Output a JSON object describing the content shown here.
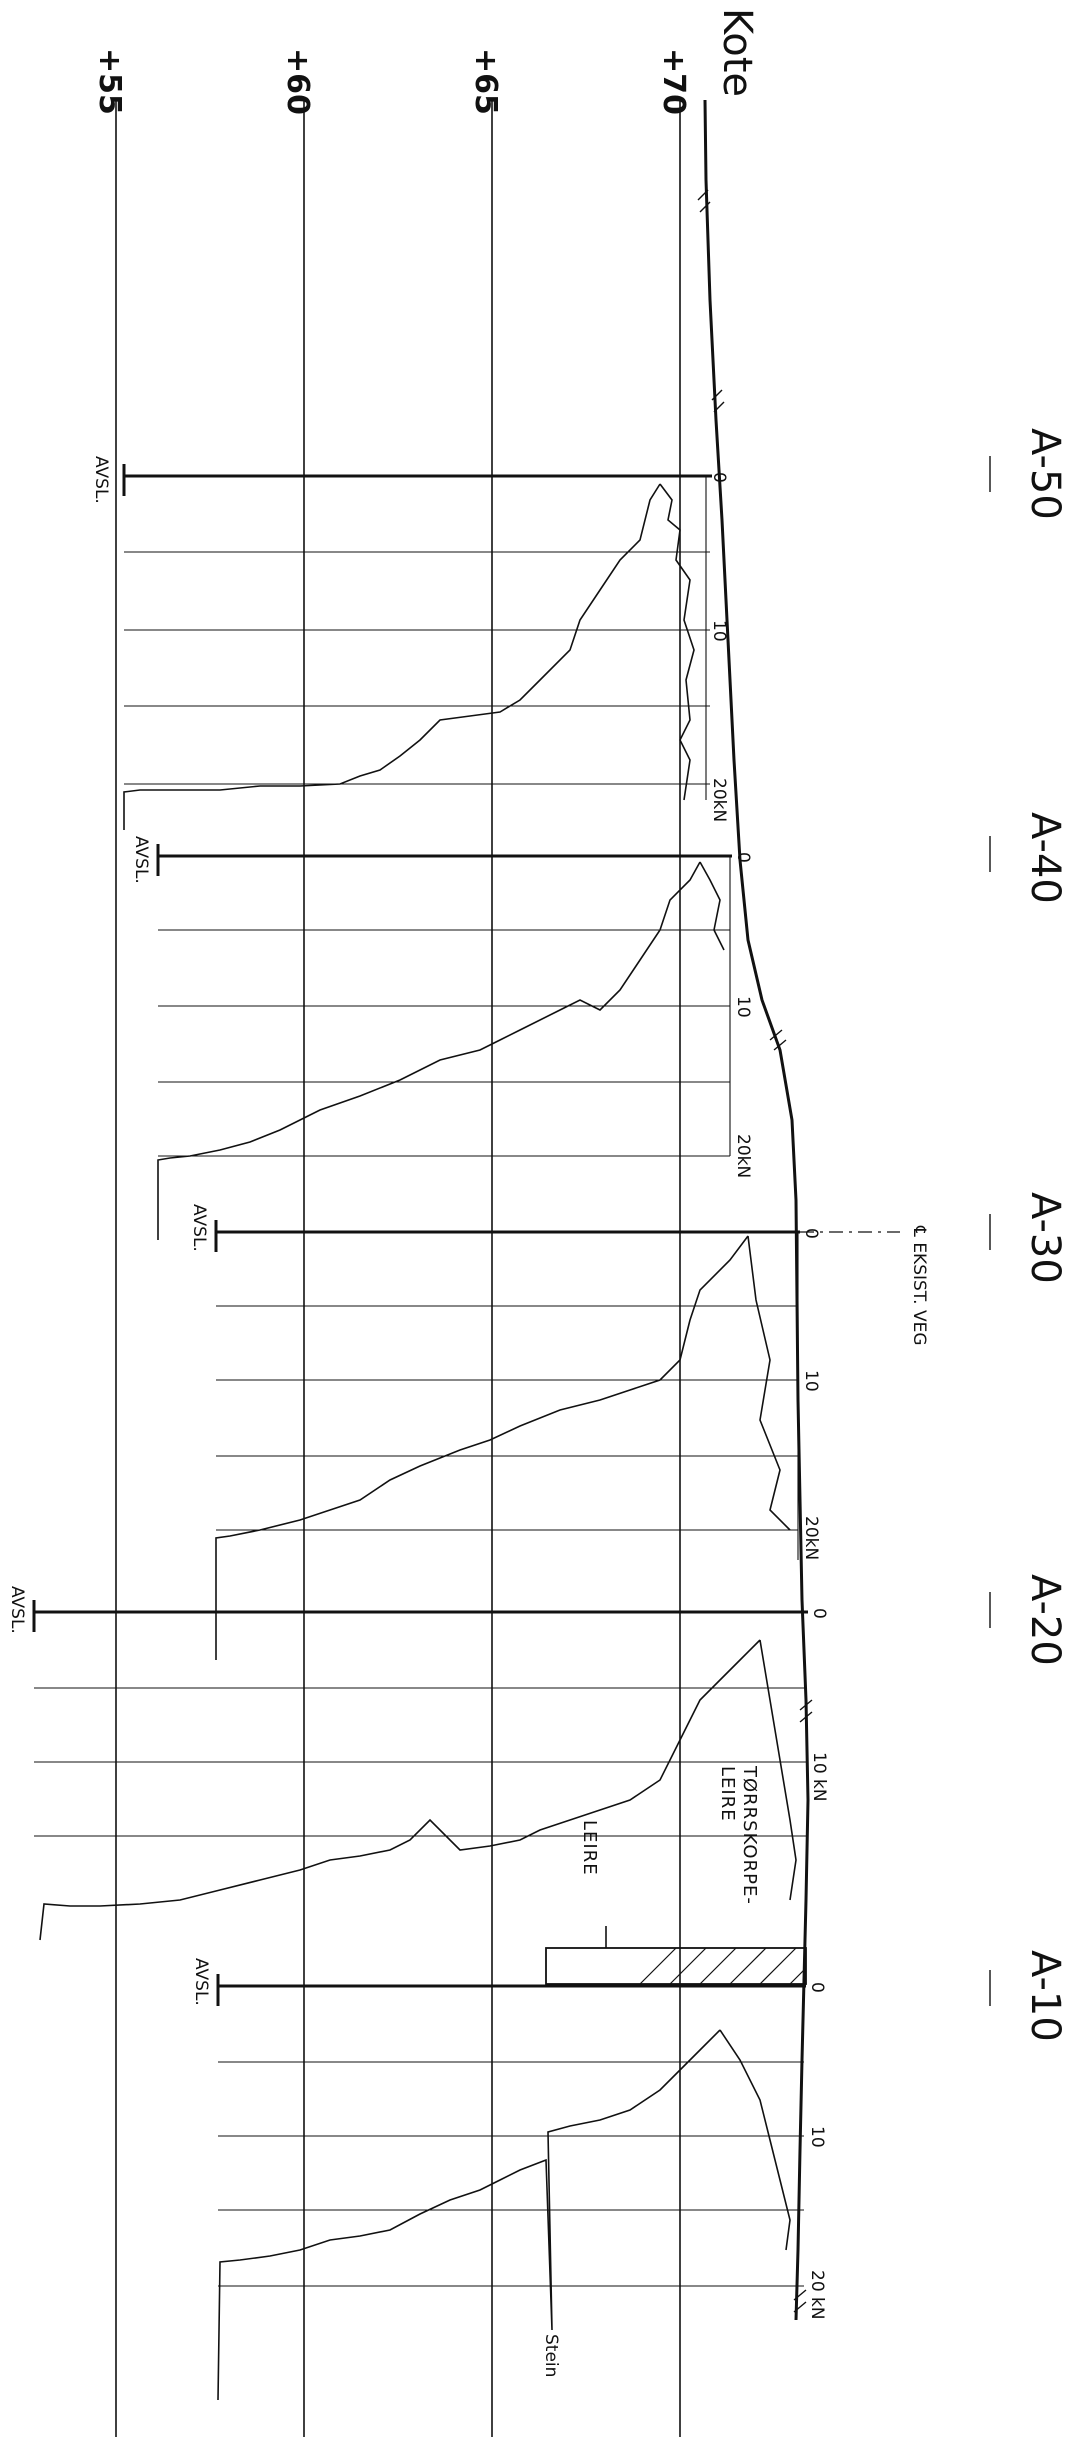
{
  "elevation_axis": {
    "title": "Kote",
    "levels": [
      {
        "value": 70,
        "label": "+70"
      },
      {
        "value": 65,
        "label": "+65"
      },
      {
        "value": 60,
        "label": "+60"
      },
      {
        "value": 55,
        "label": "+55"
      }
    ]
  },
  "profiles": [
    {
      "id": "a50",
      "label": "A-50",
      "zero": "0",
      "ten": "10",
      "twenty": "20kN",
      "end_label": "AVSL."
    },
    {
      "id": "a40",
      "label": "A-40",
      "zero": "0",
      "ten": "10",
      "twenty": "20kN",
      "end_label": "AVSL."
    },
    {
      "id": "a30",
      "label": "A-30",
      "zero": "0",
      "ten": "10",
      "twenty": "20kN",
      "end_label": "AVSL."
    },
    {
      "id": "a20",
      "label": "A-20",
      "zero": "0",
      "ten": "10 kN",
      "twenty": "",
      "end_label": "AVSL."
    },
    {
      "id": "a10",
      "label": "A-10",
      "zero": "0",
      "ten": "10",
      "twenty": "20 kN",
      "end_label": "AVSL."
    }
  ],
  "annotations": {
    "road_centerline": "℄ EKSIST. VEG",
    "dry_crust_line1": "TØRRSKORPE-",
    "dry_crust_line2": "LEIRE",
    "clay": "LEIRE",
    "stone": "Stein"
  },
  "colors": {
    "ink": "#111111",
    "paper": "#ffffff"
  }
}
